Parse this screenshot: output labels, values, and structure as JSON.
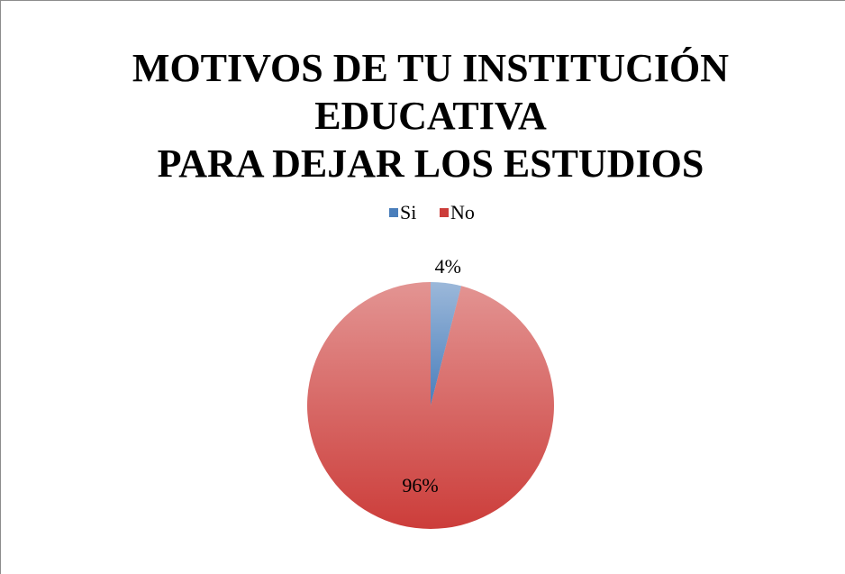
{
  "chart_data": {
    "type": "pie",
    "title": [
      "MOTIVOS DE TU INSTITUCIÓN",
      "EDUCATIVA",
      "PARA DEJAR LOS ESTUDIOS"
    ],
    "categories": [
      "Si",
      "No"
    ],
    "values": [
      4,
      96
    ],
    "value_labels": [
      "4%",
      "96%"
    ],
    "colors": [
      "#4a7ebb",
      "#cc3d3a"
    ],
    "legend": "top"
  }
}
